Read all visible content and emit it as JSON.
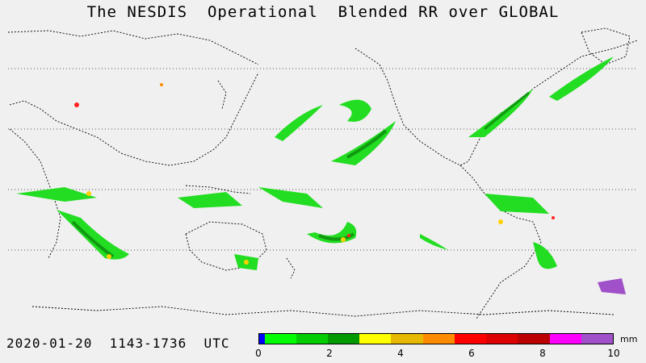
{
  "title": "The NESDIS  Operational  Blended RR over GLOBAL",
  "date_range": "2020-01-20  1143-1736  UTC",
  "units": "mm",
  "colorbar": {
    "ticks": [
      "0",
      "2",
      "4",
      "6",
      "8",
      "10"
    ],
    "colors": [
      "#0000ff",
      "#00ff00",
      "#00cc00",
      "#009900",
      "#ffff00",
      "#e6b800",
      "#ff8c00",
      "#ff0000",
      "#dd0000",
      "#bb0000",
      "#ff00ff",
      "#a050c8"
    ]
  },
  "colors": {
    "background": "#f0f0f0",
    "coastline": "#000000",
    "rain_light": "#22dd22",
    "rain_medium": "#119911",
    "rain_heavy": "#ffd000",
    "rain_intense": "#ff2020"
  }
}
